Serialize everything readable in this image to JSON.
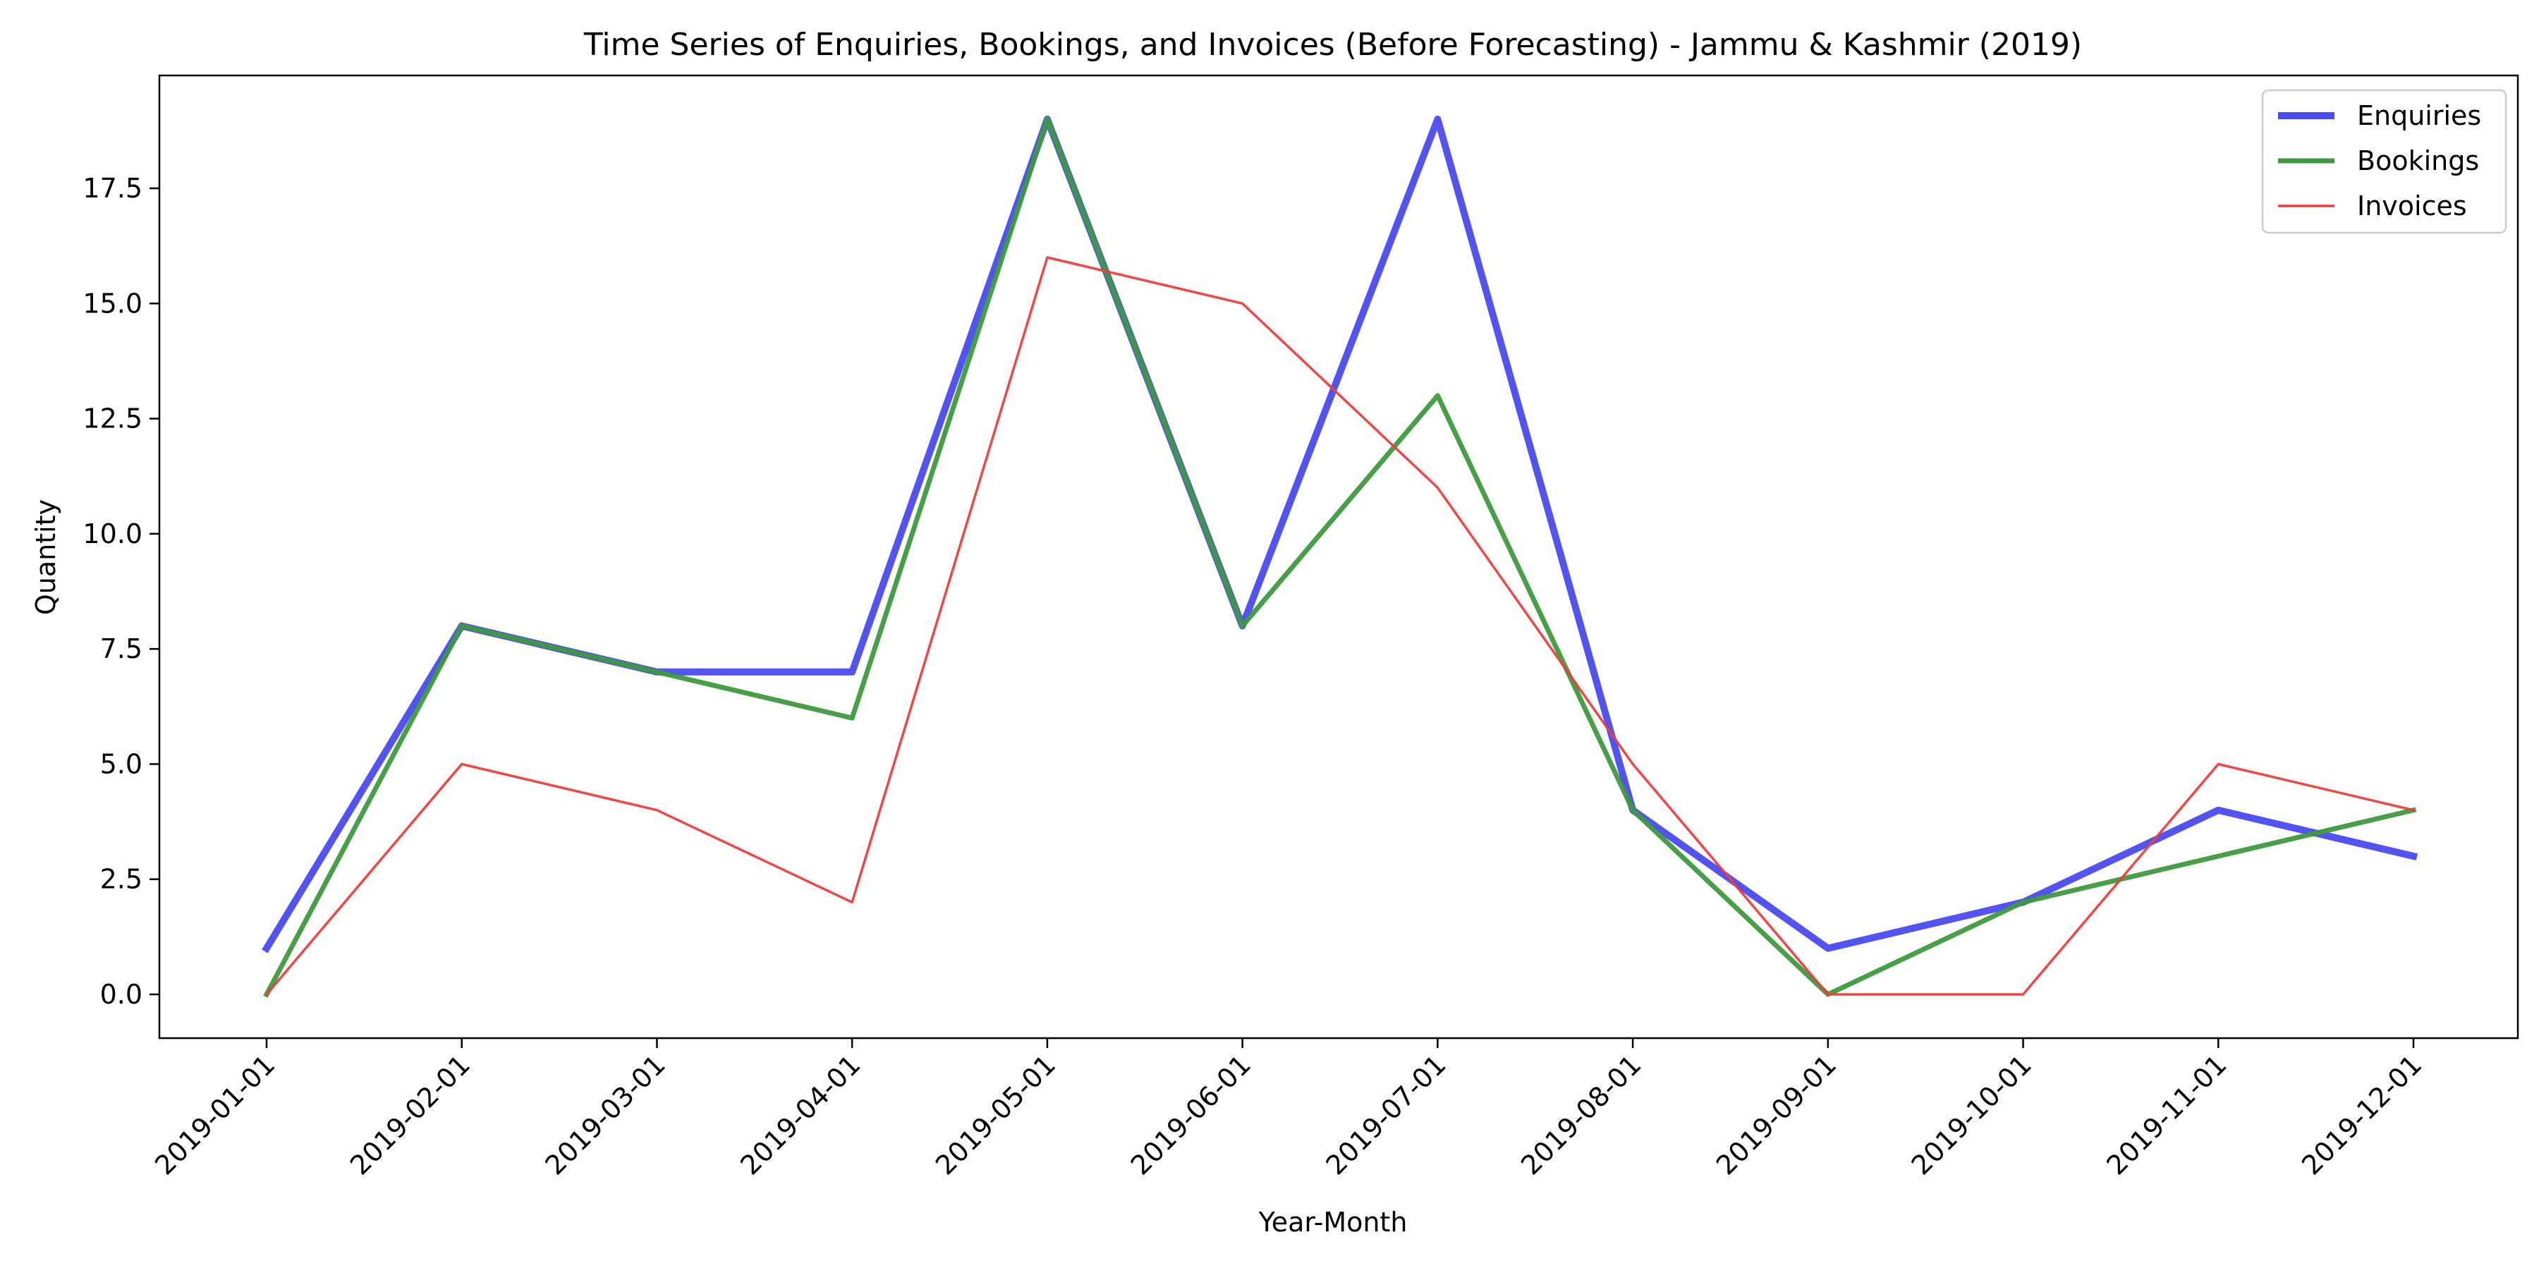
{
  "chart_data": {
    "type": "line",
    "title": "Time Series of Enquiries, Bookings, and Invoices (Before Forecasting) - Jammu & Kashmir (2019)",
    "xlabel": "Year-Month",
    "ylabel": "Quantity",
    "categories": [
      "2019-01-01",
      "2019-02-01",
      "2019-03-01",
      "2019-04-01",
      "2019-05-01",
      "2019-06-01",
      "2019-07-01",
      "2019-08-01",
      "2019-09-01",
      "2019-10-01",
      "2019-11-01",
      "2019-12-01"
    ],
    "ylim": [
      -0.95,
      19.95
    ],
    "yticks": [
      0.0,
      2.5,
      5.0,
      7.5,
      10.0,
      12.5,
      15.0,
      17.5
    ],
    "ytick_labels": [
      "0.0",
      "2.5",
      "5.0",
      "7.5",
      "10.0",
      "12.5",
      "15.0",
      "17.5"
    ],
    "grid": false,
    "legend_position": "top-right",
    "series": [
      {
        "name": "Enquiries",
        "color": "#4a4af2",
        "values": [
          1,
          8,
          7,
          7,
          19,
          8,
          19,
          4,
          1,
          2,
          4,
          3
        ]
      },
      {
        "name": "Bookings",
        "color": "#3d9a3d",
        "values": [
          0,
          8,
          7,
          6,
          19,
          8,
          13,
          4,
          0,
          2,
          3,
          4
        ]
      },
      {
        "name": "Invoices",
        "color": "#f03c3c",
        "values": [
          0,
          5,
          4,
          2,
          16,
          15,
          11,
          5,
          0,
          0,
          5,
          4
        ]
      }
    ]
  }
}
